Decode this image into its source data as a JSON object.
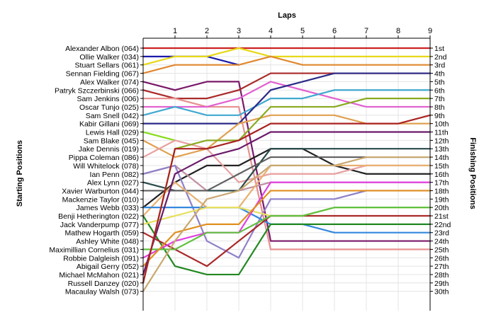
{
  "chart_data": {
    "type": "line",
    "title": "",
    "xlabel": "Laps",
    "ylabel": "Starting Positions",
    "y2label": "Finishing Positions",
    "x": [
      0,
      1,
      2,
      3,
      4,
      5,
      6,
      7,
      8,
      9
    ],
    "x_tick_labels": [
      "1",
      "2",
      "3",
      "4",
      "5",
      "6",
      "7",
      "8",
      "9"
    ],
    "y_reversed": true,
    "grid": true,
    "starting_labels": [
      "Alexander Albon (064)",
      "Ollie Walker (034)",
      "Stuart Sellars (061)",
      "Sennan Fielding (067)",
      "Alex Walker (074)",
      "Patryk Szczerbinski (066)",
      "Sam Jenkins (006)",
      "Oscar Tunjo (025)",
      "Sam Snell (042)",
      "Kabir Gillani (069)",
      "Lewis Hall (029)",
      "Sam Blake (045)",
      "Jake Dennis (019)",
      "Pippa Coleman (086)",
      "Will Whitelock (078)",
      "Ian Penn (082)",
      "Alex Lynn (027)",
      "Xavier Warburton (044)",
      "Mackenzie Taylor (010)",
      "James Webb (033)",
      "Benji Hetherington (022)",
      "Jack Vanderpump (077)",
      "Mathew Hogarth (059)",
      "Ashley White (048)",
      "Maximillian Cornelius (031)",
      "Robbie Dalgleish (091)",
      "Abigail Gerry (052)",
      "Michael McMahon (021)",
      "Russell Danzey (020)",
      "Macaulay Walsh (073)"
    ],
    "finishing_labels": [
      "1st",
      "2nd",
      "3rd",
      "4th",
      "5th",
      "6th",
      "7th",
      "8th",
      "9th",
      "10th",
      "11th",
      "12th",
      "13th",
      "14th",
      "15th",
      "16th",
      "17th",
      "18th",
      "19th",
      "20th",
      "21st",
      "22nd",
      "23rd",
      "24th",
      "25th",
      "26th",
      "27th",
      "28th",
      "29th",
      "30th"
    ],
    "series": [
      {
        "color": "#cc2222",
        "positions": [
          1,
          1,
          1,
          1,
          1,
          1,
          1,
          1,
          1,
          1
        ]
      },
      {
        "color": "#1a1aaa",
        "positions": [
          2,
          2,
          2,
          3
        ]
      },
      {
        "color": "#e8d818",
        "positions": [
          3,
          2,
          2,
          1,
          2,
          2,
          2,
          2,
          2,
          2
        ]
      },
      {
        "color": "#e08830",
        "positions": [
          4,
          3,
          3,
          3,
          2,
          3,
          3,
          3,
          3,
          3
        ]
      },
      {
        "color": "#7a1a6a",
        "positions": [
          5,
          6,
          5,
          5,
          24,
          24,
          24,
          24,
          24,
          24
        ]
      },
      {
        "color": "#aa2a2a",
        "positions": [
          6,
          7,
          7,
          6,
          4,
          4,
          4,
          4,
          4,
          4
        ]
      },
      {
        "color": "#e89090",
        "positions": [
          7,
          7,
          8,
          8,
          25,
          25,
          25,
          25,
          25,
          25
        ]
      },
      {
        "color": "#e060d0",
        "positions": [
          8,
          8,
          8,
          7,
          5,
          6,
          7,
          8,
          8,
          8
        ]
      },
      {
        "color": "#40a8d0",
        "positions": [
          9,
          8,
          9,
          9,
          7,
          7,
          6,
          6,
          6,
          6
        ]
      },
      {
        "color": "#2a2a88",
        "positions": [
          10,
          10,
          10,
          10,
          6,
          5,
          4,
          4,
          4,
          4
        ]
      },
      {
        "color": "#88dd20",
        "positions": [
          11,
          12
        ]
      },
      {
        "color": "#e0a050",
        "positions": [
          12,
          14,
          13,
          10,
          9,
          9,
          9,
          10,
          10,
          10
        ]
      },
      {
        "color": "#222222",
        "positions": [
          20,
          17,
          15,
          15,
          13,
          13,
          15,
          16,
          16,
          16
        ]
      },
      {
        "color": "#e8a0a0",
        "positions": [
          14,
          12,
          13,
          17,
          16,
          16,
          16,
          15,
          15,
          15
        ]
      },
      {
        "color": "#c090a0",
        "positions": [
          16,
          15,
          18,
          18,
          17,
          17,
          17,
          17,
          17,
          17
        ]
      },
      {
        "color": "#9080c8",
        "positions": [
          16,
          15,
          24,
          26,
          19,
          19,
          19,
          18,
          18,
          18
        ]
      },
      {
        "color": "#2a4a4a",
        "positions": [
          17,
          18,
          18,
          18,
          13,
          13,
          13,
          13,
          13,
          13
        ]
      },
      {
        "color": "#606060",
        "positions": [
          18,
          18,
          18,
          16,
          14,
          14,
          14,
          14,
          14,
          14
        ]
      },
      {
        "color": "#e8b070",
        "positions": [
          21,
          17,
          20,
          20,
          15,
          15,
          15,
          15,
          15,
          15
        ]
      },
      {
        "color": "#3388dd",
        "positions": [
          20,
          20,
          20,
          20,
          22,
          22,
          23,
          23,
          23,
          23
        ]
      },
      {
        "color": "#228822",
        "positions": [
          21,
          27,
          28,
          28,
          22,
          22,
          22,
          22,
          22,
          22
        ]
      },
      {
        "color": "#e8e060",
        "positions": [
          22,
          21,
          20,
          20,
          21,
          21,
          20,
          20,
          20,
          20
        ]
      },
      {
        "color": "#aa2a2a",
        "positions": [
          23,
          25,
          27,
          24,
          21,
          21,
          21,
          21,
          21,
          21
        ]
      },
      {
        "color": "#e040e0",
        "positions": [
          26,
          24,
          23,
          23,
          17,
          17,
          17,
          17,
          17,
          17
        ]
      },
      {
        "color": "#60c040",
        "positions": [
          25,
          25,
          23,
          23,
          21,
          21,
          20,
          20,
          20,
          20
        ]
      },
      {
        "color": "#e09020",
        "positions": [
          27,
          23,
          22,
          22,
          18,
          18,
          18,
          18,
          18,
          18
        ]
      },
      {
        "color": "#6a1a6a",
        "positions": [
          28,
          16,
          14,
          13,
          11,
          11,
          11,
          11,
          11,
          11
        ]
      },
      {
        "color": "#88aa20",
        "positions": [
          29,
          13,
          12,
          12,
          8,
          8,
          8,
          7,
          7,
          7
        ]
      },
      {
        "color": "#aa2222",
        "positions": [
          29,
          13,
          13,
          12,
          10,
          10,
          10,
          10,
          10,
          9
        ]
      },
      {
        "color": "#c8a870",
        "positions": [
          30,
          24,
          19,
          18,
          15,
          15,
          15,
          14,
          14,
          14
        ]
      }
    ]
  }
}
